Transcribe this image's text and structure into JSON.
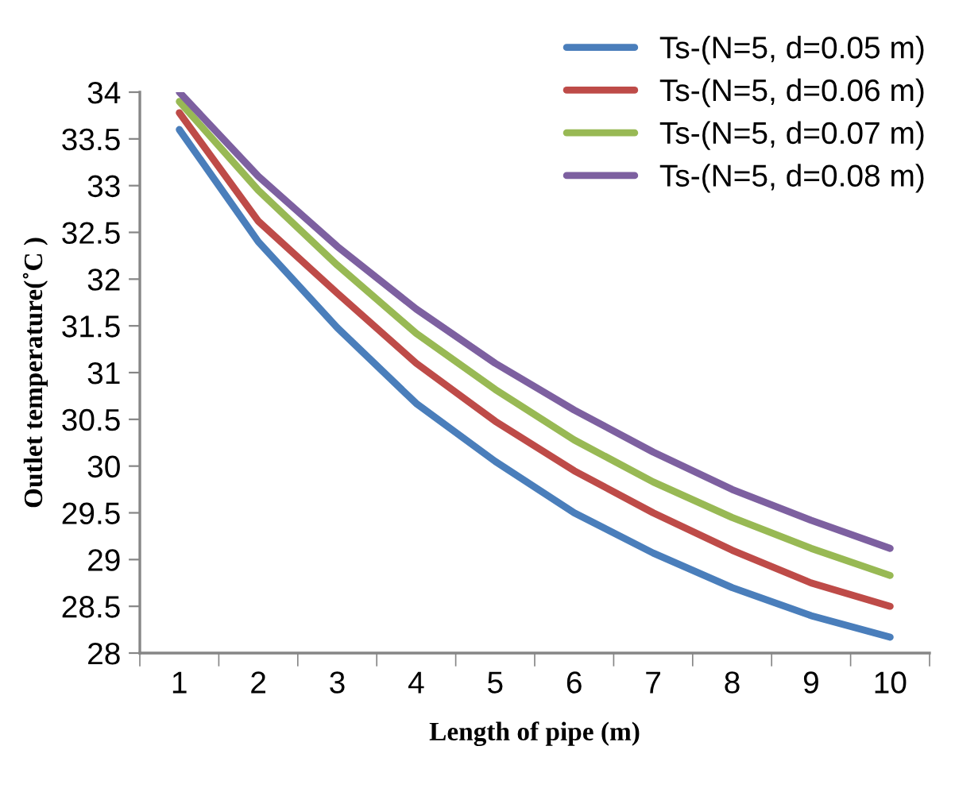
{
  "chart_data": {
    "type": "line",
    "xlabel": "Length of pipe (m)",
    "ylabel": "Outlet temperature(˚C )",
    "categories": [
      "1",
      "2",
      "3",
      "4",
      "5",
      "6",
      "7",
      "8",
      "9",
      "10"
    ],
    "ylim": [
      28,
      34
    ],
    "yticks": [
      28,
      {
        "value": 28.5,
        "label": "28.5"
      },
      29,
      {
        "value": 29.5,
        "label": "29.5"
      },
      30,
      {
        "value": 30.5,
        "label": "30.5"
      },
      31,
      {
        "value": 31.5,
        "label": "31.5"
      },
      32,
      {
        "value": 32.5,
        "label": "32.5"
      },
      33,
      {
        "value": 33.5,
        "label": "33.5"
      },
      34
    ],
    "grid": false,
    "legend": "top right",
    "marker": "none",
    "line_style": "solid",
    "series": [
      {
        "name": "Ts-(N=5, d=0.05 m)",
        "color": "#4a7ebb",
        "values": [
          33.6,
          32.4,
          31.48,
          30.67,
          30.05,
          29.5,
          29.07,
          28.7,
          28.4,
          28.17
        ]
      },
      {
        "name": "Ts-(N=5, d=0.06 m)",
        "color": "#be4b48",
        "values": [
          33.78,
          32.62,
          31.85,
          31.1,
          30.48,
          29.95,
          29.5,
          29.1,
          28.75,
          28.5
        ]
      },
      {
        "name": "Ts-(N=5, d=0.07 m)",
        "color": "#98b954",
        "values": [
          33.9,
          32.95,
          32.15,
          31.42,
          30.82,
          30.28,
          29.83,
          29.45,
          29.12,
          28.83
        ]
      },
      {
        "name": "Ts-(N=5, d=0.08 m)",
        "color": "#7d60a0",
        "values": [
          34.0,
          33.1,
          32.35,
          31.68,
          31.1,
          30.6,
          30.15,
          29.75,
          29.42,
          29.12
        ]
      }
    ]
  }
}
